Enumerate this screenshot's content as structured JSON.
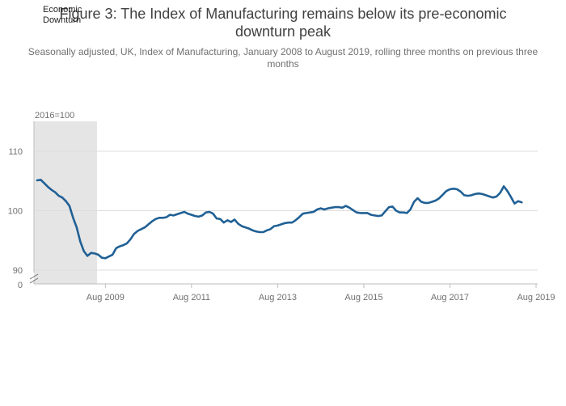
{
  "title": "Figure 3: The Index of Manufacturing remains below its pre-economic downturn peak",
  "subtitle": "Seasonally adjusted, UK, Index of Manufacturing, January 2008 to August 2019, rolling three months on previous three months",
  "chart_data": {
    "type": "line",
    "y_unit": "2016=100",
    "shaded_region": {
      "label": "Economic Downturn",
      "x_start": "Jan 2008",
      "x_end": "Jun 2009",
      "color": "#e5e5e5"
    },
    "x_tick_labels": [
      "Aug 2009",
      "Aug 2011",
      "Aug 2013",
      "Aug 2015",
      "Aug 2017",
      "Aug 2019"
    ],
    "y_tick_labels": [
      "90",
      "100",
      "110"
    ],
    "y_axis_zero_label": "0",
    "y_axis_broken": true,
    "ylim": [
      89,
      115
    ],
    "xlim": [
      "Jan 2008",
      "Aug 2019"
    ],
    "grid": true,
    "series": [
      {
        "color": "#206095",
        "start": "2008-01",
        "frequency": "monthly",
        "values": [
          105.1,
          105.2,
          104.6,
          104.0,
          103.5,
          103.1,
          102.5,
          102.2,
          101.6,
          100.8,
          98.8,
          97.2,
          94.8,
          93.2,
          92.4,
          92.9,
          92.8,
          92.6,
          92.1,
          92.0,
          92.3,
          92.6,
          93.7,
          94.0,
          94.2,
          94.5,
          95.2,
          96.1,
          96.6,
          96.9,
          97.2,
          97.7,
          98.2,
          98.6,
          98.8,
          98.8,
          98.9,
          99.3,
          99.2,
          99.4,
          99.6,
          99.8,
          99.5,
          99.3,
          99.1,
          99.0,
          99.2,
          99.7,
          99.8,
          99.5,
          98.7,
          98.6,
          98.0,
          98.4,
          98.1,
          98.5,
          97.8,
          97.4,
          97.2,
          97.0,
          96.7,
          96.5,
          96.4,
          96.4,
          96.7,
          96.9,
          97.4,
          97.5,
          97.7,
          97.9,
          98.0,
          98.0,
          98.4,
          98.9,
          99.5,
          99.6,
          99.7,
          99.8,
          100.2,
          100.4,
          100.2,
          100.4,
          100.5,
          100.6,
          100.6,
          100.5,
          100.8,
          100.5,
          100.1,
          99.7,
          99.6,
          99.6,
          99.6,
          99.3,
          99.2,
          99.1,
          99.2,
          99.9,
          100.6,
          100.7,
          100.0,
          99.7,
          99.7,
          99.6,
          100.2,
          101.5,
          102.1,
          101.5,
          101.3,
          101.3,
          101.5,
          101.7,
          102.1,
          102.7,
          103.3,
          103.6,
          103.7,
          103.6,
          103.2,
          102.6,
          102.5,
          102.6,
          102.8,
          102.9,
          102.8,
          102.6,
          102.4,
          102.2,
          102.4,
          103.0,
          104.1,
          103.3,
          102.3,
          101.2,
          101.6,
          101.4
        ]
      }
    ]
  }
}
